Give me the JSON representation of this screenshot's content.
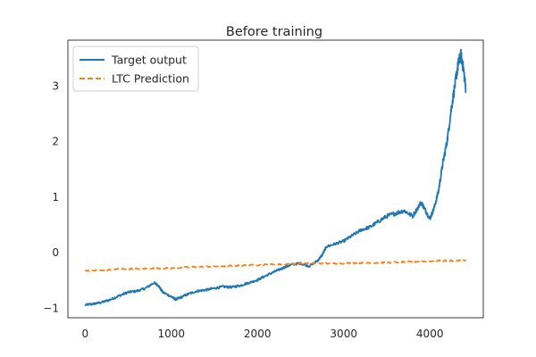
{
  "chart_data": {
    "type": "line",
    "title": "Before training",
    "xlabel": "",
    "ylabel": "",
    "xlim": [
      -200,
      4620
    ],
    "ylim": [
      -1.18,
      3.82
    ],
    "xticks": [
      0,
      1000,
      2000,
      3000,
      4000
    ],
    "xtick_labels": [
      "0",
      "1000",
      "2000",
      "3000",
      "4000"
    ],
    "yticks": [
      -1,
      0,
      1,
      2,
      3
    ],
    "ytick_labels": [
      "−1",
      "0",
      "1",
      "2",
      "3"
    ],
    "grid": false,
    "legend_position": "top-left",
    "series": [
      {
        "name": "Target output",
        "color": "#1f77b4",
        "style": "solid",
        "x": [
          0,
          100,
          200,
          300,
          400,
          500,
          600,
          700,
          800,
          850,
          900,
          1000,
          1050,
          1100,
          1200,
          1300,
          1400,
          1500,
          1600,
          1700,
          1800,
          1900,
          2000,
          2100,
          2200,
          2300,
          2400,
          2500,
          2600,
          2700,
          2750,
          2800,
          2900,
          3000,
          3100,
          3200,
          3300,
          3400,
          3500,
          3600,
          3700,
          3800,
          3900,
          3950,
          4000,
          4050,
          4100,
          4150,
          4200,
          4250,
          4300,
          4330,
          4360,
          4390,
          4420
        ],
        "y": [
          -0.95,
          -0.93,
          -0.9,
          -0.85,
          -0.78,
          -0.72,
          -0.7,
          -0.65,
          -0.55,
          -0.6,
          -0.72,
          -0.8,
          -0.85,
          -0.82,
          -0.75,
          -0.7,
          -0.68,
          -0.65,
          -0.62,
          -0.63,
          -0.6,
          -0.55,
          -0.5,
          -0.42,
          -0.35,
          -0.28,
          -0.22,
          -0.2,
          -0.25,
          -0.15,
          -0.05,
          0.1,
          0.15,
          0.2,
          0.3,
          0.4,
          0.45,
          0.55,
          0.65,
          0.7,
          0.75,
          0.65,
          0.9,
          0.75,
          0.6,
          0.8,
          1.1,
          1.6,
          2.0,
          2.6,
          3.1,
          3.4,
          3.55,
          3.3,
          2.9
        ]
      },
      {
        "name": "LTC Prediction",
        "color": "#ff7f0e",
        "style": "dashed",
        "x": [
          0,
          200,
          400,
          600,
          800,
          1000,
          1200,
          1400,
          1600,
          1800,
          2000,
          2200,
          2400,
          2600,
          2800,
          3000,
          3200,
          3400,
          3600,
          3800,
          4000,
          4200,
          4420
        ],
        "y": [
          -0.33,
          -0.33,
          -0.3,
          -0.3,
          -0.29,
          -0.29,
          -0.27,
          -0.26,
          -0.25,
          -0.24,
          -0.23,
          -0.22,
          -0.21,
          -0.2,
          -0.2,
          -0.2,
          -0.19,
          -0.19,
          -0.18,
          -0.17,
          -0.16,
          -0.15,
          -0.15
        ]
      }
    ]
  }
}
